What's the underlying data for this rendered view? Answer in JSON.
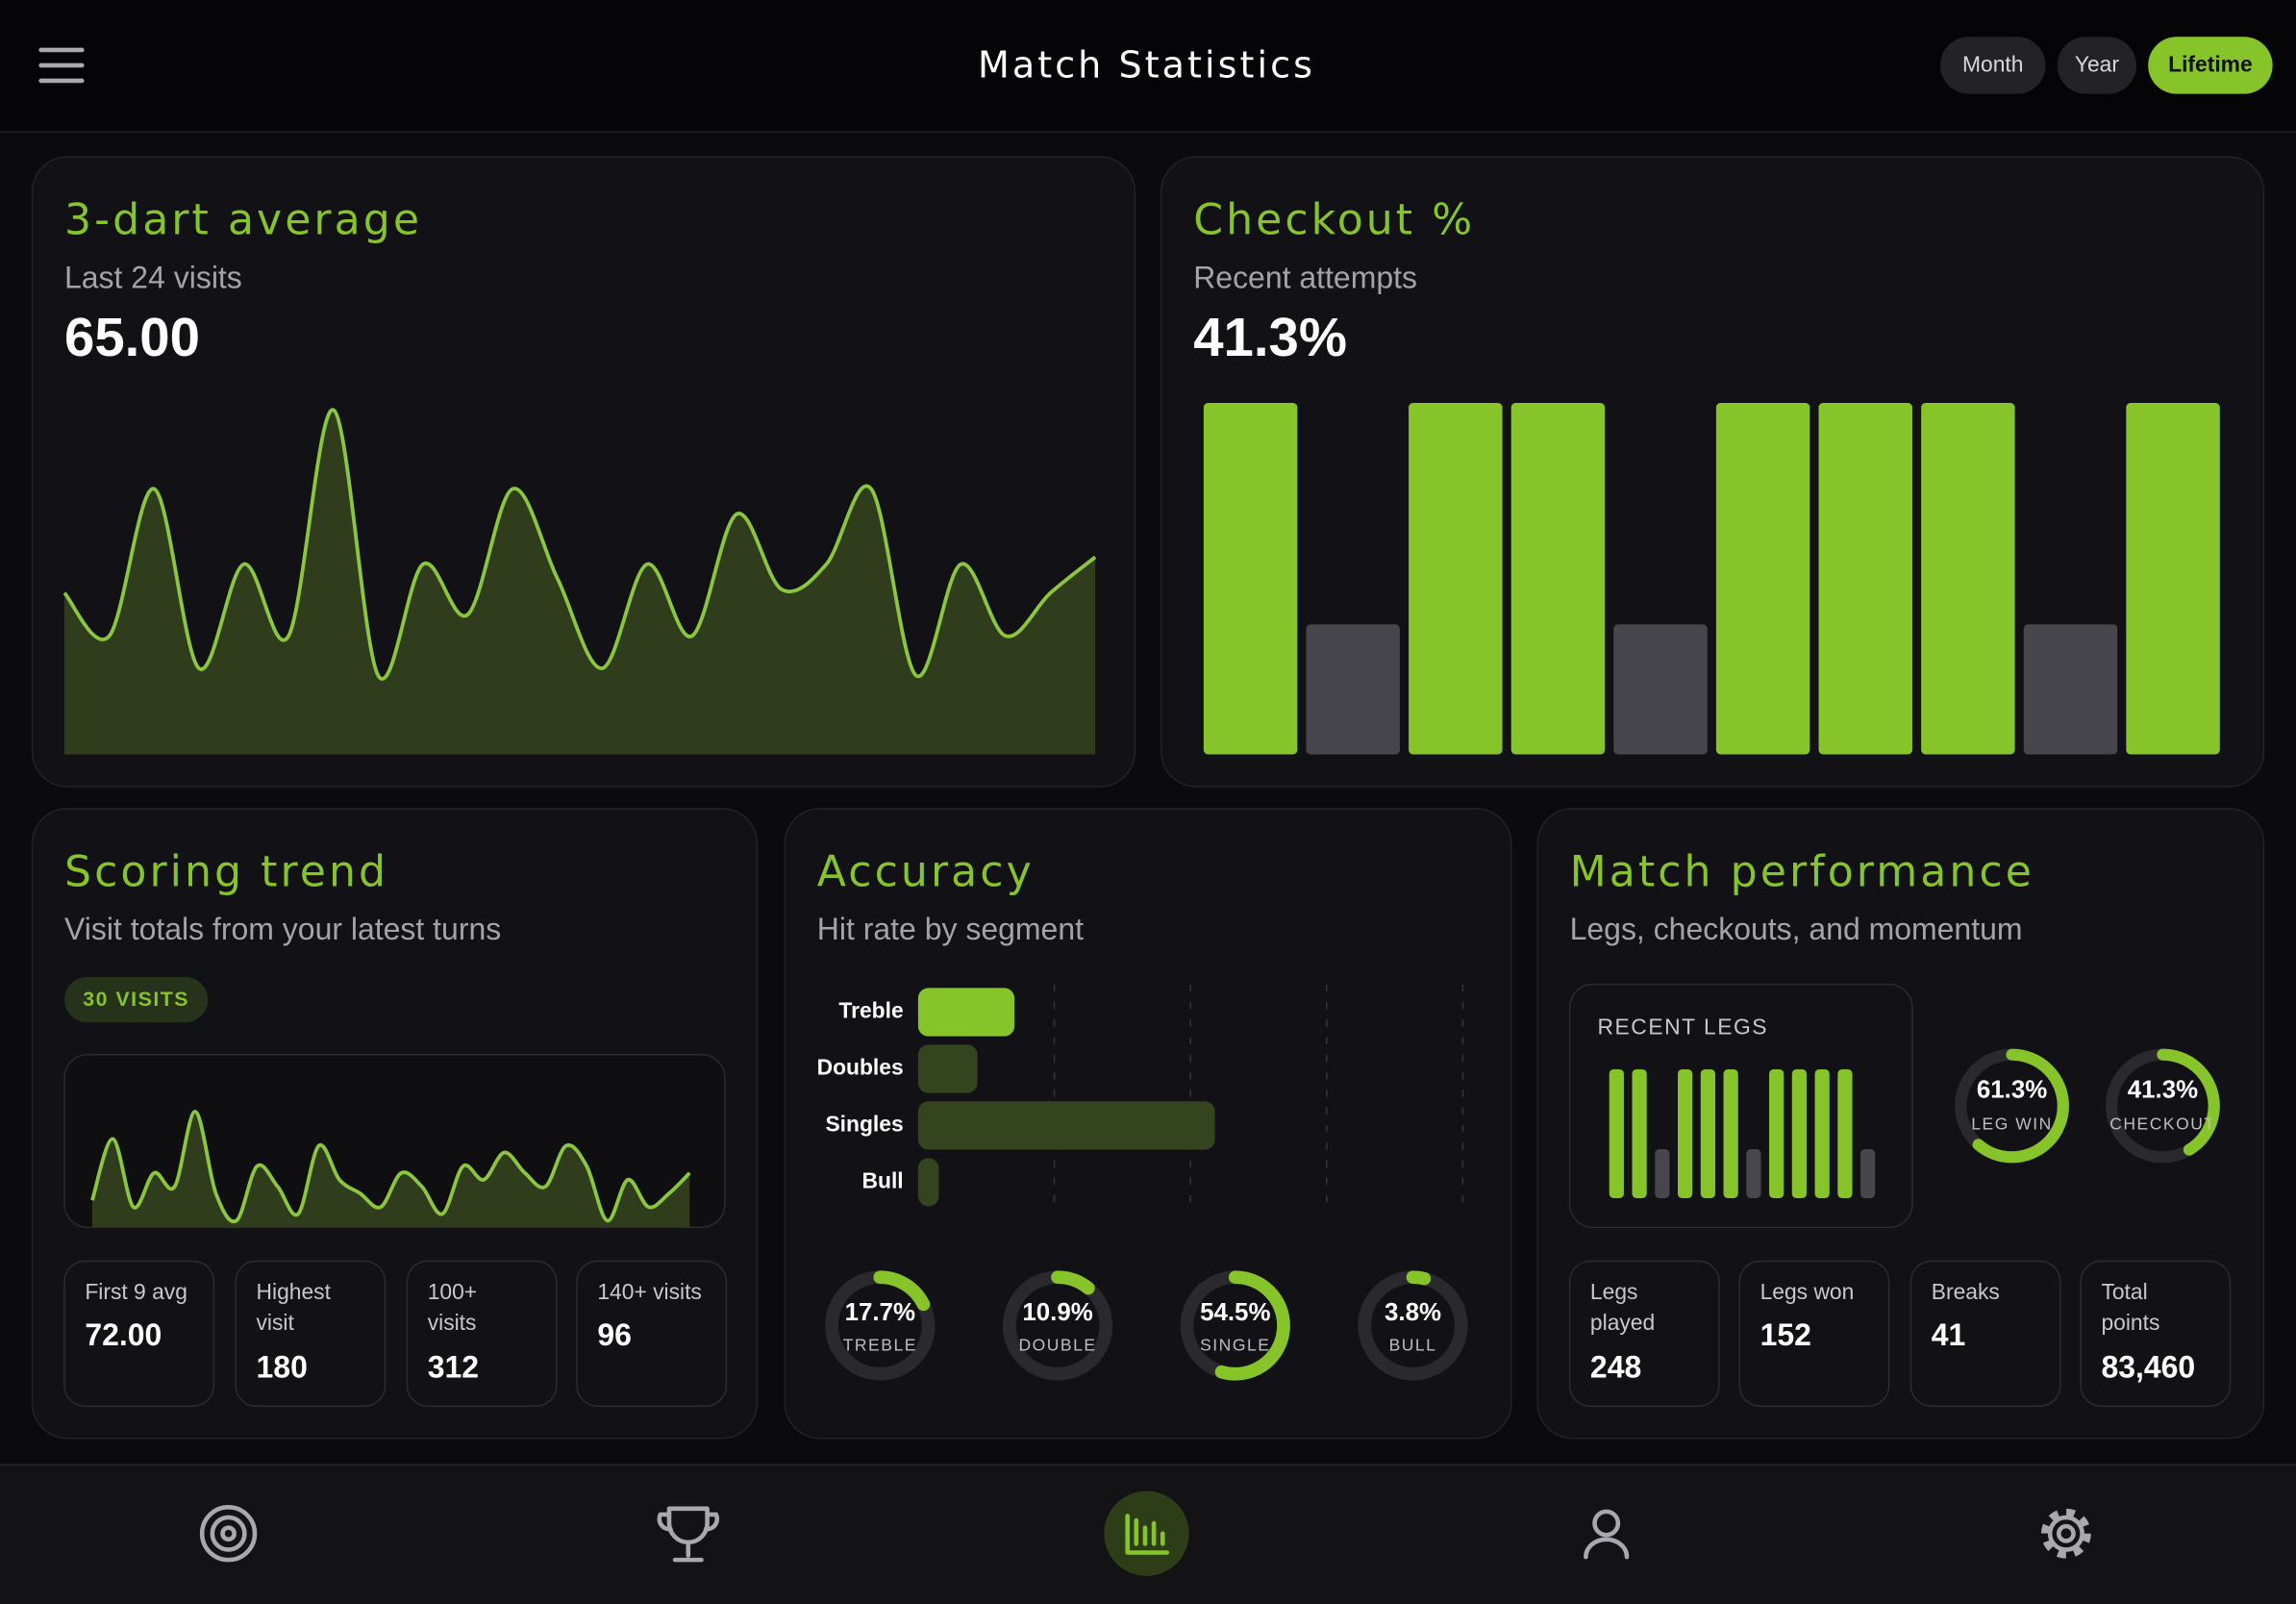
{
  "header": {
    "title": "Match Statistics",
    "periods": [
      "Month",
      "Year",
      "Lifetime"
    ],
    "active": 2
  },
  "dart_average": {
    "type": "line",
    "title": "3-dart average",
    "subtitle": "Last 24 visits",
    "value": "65.00",
    "values": [
      45,
      33,
      74,
      24,
      53,
      33,
      96,
      22,
      53,
      39,
      74,
      49,
      24,
      53,
      33,
      67,
      46,
      53,
      74,
      22,
      53,
      33,
      45,
      55
    ],
    "ylim": [
      0,
      100
    ],
    "color": "#8cc63f"
  },
  "checkout": {
    "type": "bar",
    "title": "Checkout %",
    "subtitle": "Recent attempts",
    "value": "41.3%",
    "values": [
      100,
      37,
      100,
      100,
      37,
      100,
      100,
      100,
      37,
      100
    ],
    "colors": [
      "#86c42a",
      "#46464c",
      "#86c42a",
      "#86c42a",
      "#46464c",
      "#86c42a",
      "#86c42a",
      "#86c42a",
      "#46464c",
      "#86c42a"
    ],
    "ylim": [
      0,
      100
    ]
  },
  "scoring_trend": {
    "type": "line",
    "title": "Scoring trend",
    "subtitle": "Visit totals from your latest turns",
    "badge": "30 VISITS",
    "values": [
      20,
      65,
      15,
      40,
      30,
      85,
      25,
      5,
      45,
      30,
      10,
      60,
      35,
      25,
      15,
      40,
      30,
      10,
      45,
      35,
      55,
      40,
      30,
      60,
      45,
      5,
      35,
      15,
      25,
      40
    ],
    "ylim": [
      0,
      100
    ],
    "color": "#8cc63f",
    "stats": [
      {
        "label": "First 9 avg",
        "value": "72.00"
      },
      {
        "label": "Highest visit",
        "value": "180"
      },
      {
        "label": "100+ visits",
        "value": "312"
      },
      {
        "label": "140+ visits",
        "value": "96"
      }
    ]
  },
  "accuracy": {
    "type": "bar",
    "title": "Accuracy",
    "subtitle": "Hit rate by segment",
    "xlim": [
      0,
      100
    ],
    "xticks": [
      25,
      50,
      75,
      100
    ],
    "segments": [
      {
        "name": "Treble",
        "label": "TREBLE",
        "value": 17.7,
        "value_label": "17.7%",
        "color": "#86c42a"
      },
      {
        "name": "Doubles",
        "label": "DOUBLE",
        "value": 10.9,
        "value_label": "10.9%",
        "color": "#34441f"
      },
      {
        "name": "Singles",
        "label": "SINGLE",
        "value": 54.5,
        "value_label": "54.5%",
        "color": "#34441f"
      },
      {
        "name": "Bull",
        "label": "BULL",
        "value": 3.8,
        "value_label": "3.8%",
        "color": "#34441f"
      }
    ]
  },
  "match_performance": {
    "title": "Match performance",
    "subtitle": "Legs, checkouts, and momentum",
    "recent_legs": {
      "type": "bar",
      "title": "RECENT LEGS",
      "values": [
        100,
        100,
        38,
        100,
        100,
        100,
        38,
        100,
        100,
        100,
        100,
        38
      ],
      "colors": [
        "#86c42a",
        "#86c42a",
        "#46464c",
        "#86c42a",
        "#86c42a",
        "#86c42a",
        "#46464c",
        "#86c42a",
        "#86c42a",
        "#86c42a",
        "#86c42a",
        "#46464c"
      ],
      "ylim": [
        0,
        100
      ]
    },
    "rings": [
      {
        "label": "LEG WIN",
        "value": 61.3,
        "value_label": "61.3%"
      },
      {
        "label": "CHECKOUT",
        "value": 41.3,
        "value_label": "41.3%"
      }
    ],
    "stats": [
      {
        "label": "Legs played",
        "value": "248"
      },
      {
        "label": "Legs won",
        "value": "152"
      },
      {
        "label": "Breaks",
        "value": "41"
      },
      {
        "label": "Total points",
        "value": "83,460"
      }
    ]
  }
}
